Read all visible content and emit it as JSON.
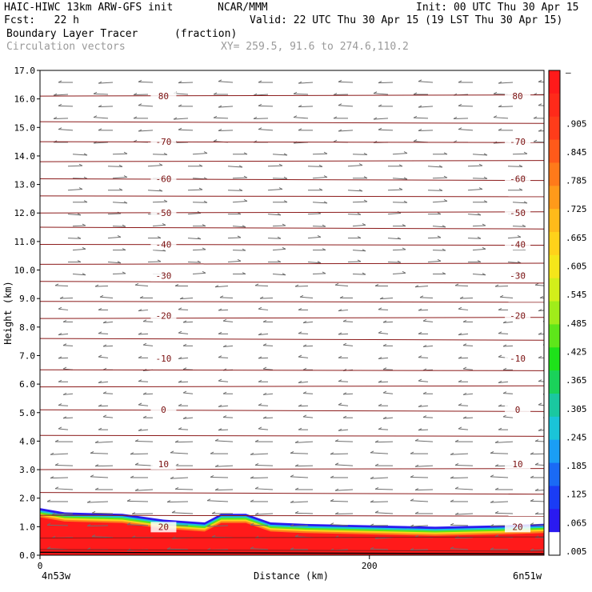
{
  "header": {
    "model": "HAIC-HIWC 13km ARW-GFS init",
    "org": "NCAR/MMM",
    "init": "Init: 00 UTC Thu 30 Apr 15",
    "fcst": "Fcst:   22 h",
    "valid": "Valid: 22 UTC Thu 30 Apr 15 (19 LST Thu 30 Apr 15)",
    "field": "Boundary Layer Tracer",
    "units": "(fraction)",
    "vectors": "Circulation vectors",
    "xy": "XY= 259.5, 91.6 to 274.6,110.2"
  },
  "chart_data": {
    "type": "cross-section",
    "ylabel": "Height (km)",
    "xlabel": "Distance (km)",
    "ylim": [
      0,
      17
    ],
    "xlim": [
      0,
      306
    ],
    "yticks": [
      "0.0",
      "1.0",
      "2.0",
      "3.0",
      "4.0",
      "5.0",
      "6.0",
      "7.0",
      "8.0",
      "9.0",
      "10.0",
      "11.0",
      "12.0",
      "13.0",
      "14.0",
      "15.0",
      "16.0",
      "17.0"
    ],
    "xticks": [
      {
        "value": 0,
        "label": "0"
      },
      {
        "value": 200,
        "label": "200"
      }
    ],
    "x_endpoints": {
      "left": "4n53w",
      "right": "6n51w"
    },
    "colorbar": {
      "labels": [
        "–",
        ".905",
        ".845",
        ".785",
        ".725",
        ".665",
        ".605",
        ".545",
        ".485",
        ".425",
        ".365",
        ".305",
        ".245",
        ".185",
        ".125",
        ".065",
        ".005"
      ],
      "colors": [
        "#ff1a1a",
        "#ff2a1a",
        "#ff3c1a",
        "#ff5a1a",
        "#ff7a1a",
        "#ff9a1a",
        "#ffba1a",
        "#ffd21a",
        "#f5e61a",
        "#d2ee1a",
        "#a0ec1a",
        "#5ee61a",
        "#1ee21a",
        "#1ad25a",
        "#1ac8a0",
        "#1ac4d8",
        "#1a9ef5",
        "#1a6af5",
        "#1a3cf5",
        "#2a1af0",
        "#ffffff"
      ],
      "color_count": 21
    },
    "isotherms": [
      {
        "label": "80",
        "y": 16.1
      },
      {
        "label": "-70",
        "y": 14.5
      },
      {
        "label": "-60",
        "y": 13.2
      },
      {
        "label": "-50",
        "y": 12.0
      },
      {
        "label": "-40",
        "y": 10.9
      },
      {
        "label": "-30",
        "y": 9.8
      },
      {
        "label": "-20",
        "y": 8.4
      },
      {
        "label": "-10",
        "y": 6.9
      },
      {
        "label": "0",
        "y": 5.1
      },
      {
        "label": "10",
        "y": 3.2
      },
      {
        "label": "20",
        "y": 1.0
      }
    ],
    "pressure_levels_km": [
      0.2,
      0.6,
      1.4,
      2.2,
      3.0,
      4.2,
      5.1,
      5.9,
      6.5,
      7.6,
      8.3,
      8.9,
      9.6,
      10.2,
      10.9,
      11.5,
      12.0,
      12.6,
      13.2,
      13.8,
      14.5,
      15.2,
      16.1
    ],
    "boundary_layer_top_km": [
      {
        "x": 0,
        "y": 1.65
      },
      {
        "x": 15,
        "y": 1.5
      },
      {
        "x": 50,
        "y": 1.45
      },
      {
        "x": 75,
        "y": 1.25
      },
      {
        "x": 100,
        "y": 1.15
      },
      {
        "x": 110,
        "y": 1.45
      },
      {
        "x": 125,
        "y": 1.45
      },
      {
        "x": 140,
        "y": 1.15
      },
      {
        "x": 160,
        "y": 1.1
      },
      {
        "x": 200,
        "y": 1.05
      },
      {
        "x": 240,
        "y": 1.0
      },
      {
        "x": 280,
        "y": 1.05
      },
      {
        "x": 306,
        "y": 1.1
      }
    ]
  }
}
